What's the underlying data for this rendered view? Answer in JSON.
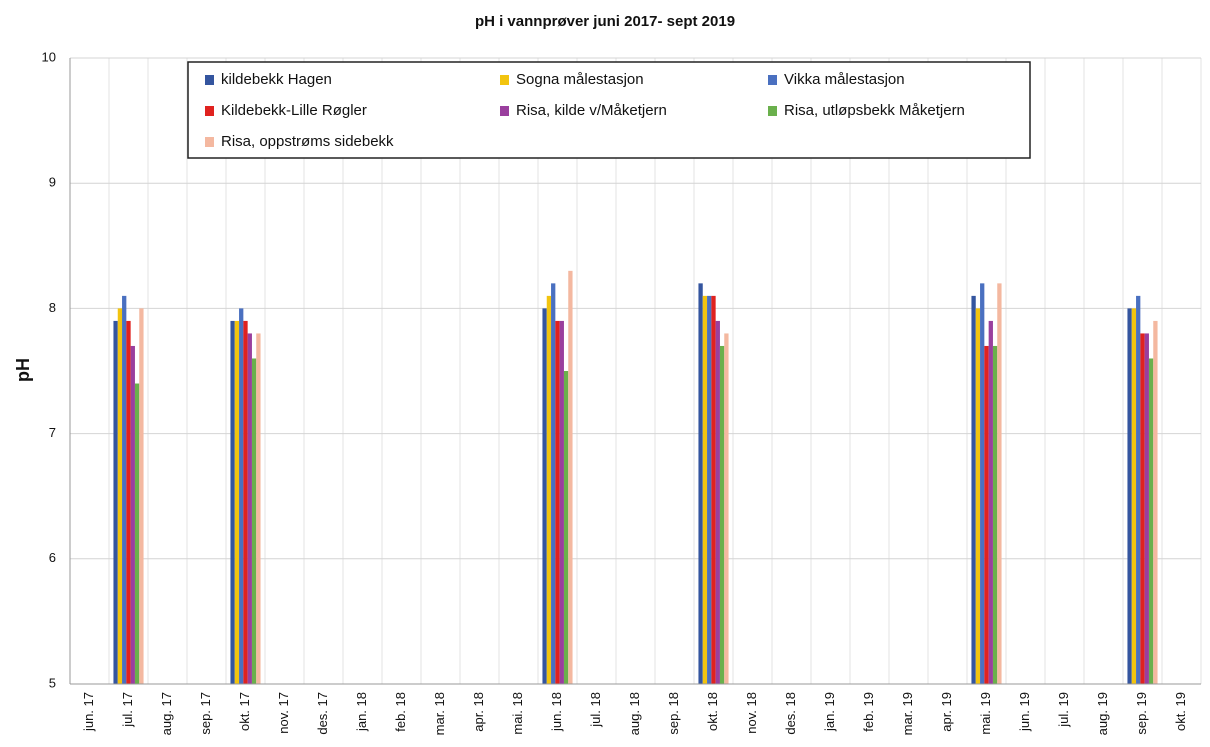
{
  "chart_data": {
    "type": "bar",
    "title": "pH i vannprøver juni 2017- sept 2019",
    "y_label": "pH",
    "categories": [
      "jun. 17",
      "jul. 17",
      "aug. 17",
      "sep. 17",
      "okt. 17",
      "nov. 17",
      "des. 17",
      "jan. 18",
      "feb. 18",
      "mar. 18",
      "apr. 18",
      "mai. 18",
      "jun. 18",
      "jul. 18",
      "aug. 18",
      "sep. 18",
      "okt. 18",
      "nov. 18",
      "des. 18",
      "jan. 19",
      "feb. 19",
      "mar. 19",
      "apr. 19",
      "mai. 19",
      "jun. 19",
      "jul. 19",
      "aug. 19",
      "sep. 19",
      "okt. 19"
    ],
    "series": [
      {
        "name": "kildebekk Hagen",
        "color": "#34559f",
        "values": [
          null,
          7.9,
          null,
          null,
          7.9,
          null,
          null,
          null,
          null,
          null,
          null,
          null,
          8.0,
          null,
          null,
          null,
          8.2,
          null,
          null,
          null,
          null,
          null,
          null,
          8.1,
          null,
          null,
          null,
          8.0,
          null
        ]
      },
      {
        "name": "Sogna målestasjon",
        "color": "#f2c40f",
        "values": [
          null,
          8.0,
          null,
          null,
          7.9,
          null,
          null,
          null,
          null,
          null,
          null,
          null,
          8.1,
          null,
          null,
          null,
          8.1,
          null,
          null,
          null,
          null,
          null,
          null,
          8.0,
          null,
          null,
          null,
          8.0,
          null
        ]
      },
      {
        "name": "Vikka målestasjon",
        "color": "#4a70c0",
        "values": [
          null,
          8.1,
          null,
          null,
          8.0,
          null,
          null,
          null,
          null,
          null,
          null,
          null,
          8.2,
          null,
          null,
          null,
          8.1,
          null,
          null,
          null,
          null,
          null,
          null,
          8.2,
          null,
          null,
          null,
          8.1,
          null
        ]
      },
      {
        "name": "Kildebekk-Lille Røgler",
        "color": "#e0221f",
        "values": [
          null,
          7.9,
          null,
          null,
          7.9,
          null,
          null,
          null,
          null,
          null,
          null,
          null,
          7.9,
          null,
          null,
          null,
          8.1,
          null,
          null,
          null,
          null,
          null,
          null,
          7.7,
          null,
          null,
          null,
          7.8,
          null
        ]
      },
      {
        "name": "Risa, kilde v/Måketjern",
        "color": "#9a3f9e",
        "values": [
          null,
          7.7,
          null,
          null,
          7.8,
          null,
          null,
          null,
          null,
          null,
          null,
          null,
          7.9,
          null,
          null,
          null,
          7.9,
          null,
          null,
          null,
          null,
          null,
          null,
          7.9,
          null,
          null,
          null,
          7.8,
          null
        ]
      },
      {
        "name": "Risa, utløpsbekk Måketjern",
        "color": "#6ab04c",
        "values": [
          null,
          7.4,
          null,
          null,
          7.6,
          null,
          null,
          null,
          null,
          null,
          null,
          null,
          7.5,
          null,
          null,
          null,
          7.7,
          null,
          null,
          null,
          null,
          null,
          null,
          7.7,
          null,
          null,
          null,
          7.6,
          null
        ]
      },
      {
        "name": "Risa, oppstrøms sidebekk",
        "color": "#f4b8a0",
        "values": [
          null,
          8.0,
          null,
          null,
          7.8,
          null,
          null,
          null,
          null,
          null,
          null,
          null,
          8.3,
          null,
          null,
          null,
          7.8,
          null,
          null,
          null,
          null,
          null,
          null,
          8.2,
          null,
          null,
          null,
          7.9,
          null
        ]
      }
    ],
    "ylim": [
      5,
      10
    ],
    "yticks": [
      5,
      6,
      7,
      8,
      9,
      10
    ],
    "grid": true
  }
}
